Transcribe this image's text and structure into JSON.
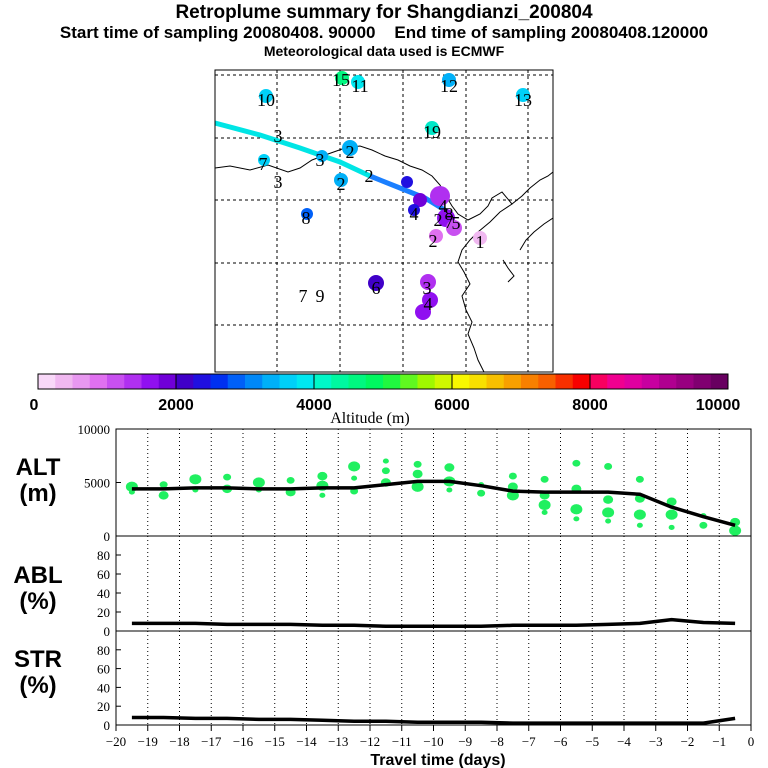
{
  "header": {
    "title": "Retroplume summary for Shangdianzi_200804",
    "start_label": "Start time of sampling 20080408. 90000",
    "end_label": "End time of sampling 20080408.120000",
    "met_label": "Meteorological data used is ECMWF"
  },
  "map": {
    "day_labels": [
      "1",
      "2",
      "2",
      "2",
      "2",
      "2",
      "3",
      "3",
      "3",
      "3",
      "4",
      "4",
      "4",
      "5",
      "6",
      "7",
      "7",
      "7",
      "8",
      "8",
      "9",
      "10",
      "11",
      "12",
      "13",
      "15",
      "19"
    ],
    "trajectory_colors": [
      "#00e5e5",
      "#1a7fff"
    ]
  },
  "colorbar": {
    "colors": [
      "#f8d8f8",
      "#f0b8f0",
      "#e898f0",
      "#e070f0",
      "#c850f0",
      "#b030f0",
      "#9010f0",
      "#7000d8",
      "#4000c8",
      "#2010e0",
      "#0030f0",
      "#0060f8",
      "#0088f8",
      "#00b0f8",
      "#00d0f8",
      "#00e8f0",
      "#00f8c8",
      "#00f8a0",
      "#00f880",
      "#00f860",
      "#20f840",
      "#60f820",
      "#a0f800",
      "#d0f800",
      "#f8f800",
      "#f8e000",
      "#f8c000",
      "#f8a000",
      "#f88000",
      "#f86000",
      "#f83000",
      "#f80000",
      "#f80060",
      "#f00090",
      "#e000a0",
      "#c800a0",
      "#b00090",
      "#980080",
      "#800070",
      "#680060"
    ],
    "tick_labels": [
      "0",
      "2000",
      "4000",
      "6000",
      "8000",
      "10000"
    ],
    "axis_label": "Altitude (m)"
  },
  "panels": {
    "alt_label": "ALT\n(m)",
    "abl_label": "ABL\n(%)",
    "str_label": "STR\n(%)",
    "alt_ticks": [
      "10000",
      "5000",
      "0"
    ],
    "pct_ticks": [
      "80",
      "60",
      "40",
      "20",
      "0"
    ],
    "x_label": "Travel time (days)",
    "x_ticks": [
      "−20",
      "−19",
      "−18",
      "−17",
      "−16",
      "−15",
      "−14",
      "−13",
      "−12",
      "−11",
      "−10",
      "−9",
      "−8",
      "−7",
      "−6",
      "−5",
      "−4",
      "−3",
      "−2",
      "−1",
      "0"
    ]
  },
  "chart_data": [
    {
      "type": "line",
      "title": "ALT",
      "xlabel": "Travel time (days)",
      "ylabel": "ALT (m)",
      "xlim": [
        -20,
        0
      ],
      "ylim": [
        0,
        10000
      ],
      "x": [
        -19.5,
        -18.5,
        -17.5,
        -16.5,
        -15.5,
        -14.5,
        -13.5,
        -12.5,
        -11.5,
        -10.5,
        -9.5,
        -8.5,
        -7.5,
        -6.5,
        -5.5,
        -4.5,
        -3.5,
        -2.5,
        -1.5,
        -0.5
      ],
      "series": [
        {
          "name": "median altitude",
          "values": [
            4400,
            4400,
            4500,
            4500,
            4400,
            4400,
            4500,
            4500,
            4800,
            5100,
            5100,
            4700,
            4200,
            4100,
            4100,
            4100,
            3900,
            2700,
            1800,
            1000
          ]
        }
      ],
      "scatter_x": [
        -19.5,
        -19.5,
        -18.5,
        -18.5,
        -17.5,
        -17.5,
        -16.5,
        -16.5,
        -15.5,
        -15.5,
        -14.5,
        -14.5,
        -13.5,
        -13.5,
        -13.5,
        -12.5,
        -12.5,
        -12.5,
        -11.5,
        -11.5,
        -11.5,
        -10.5,
        -10.5,
        -10.5,
        -9.5,
        -9.5,
        -9.5,
        -8.5,
        -8.5,
        -7.5,
        -7.5,
        -7.5,
        -6.5,
        -6.5,
        -6.5,
        -6.5,
        -5.5,
        -5.5,
        -5.5,
        -5.5,
        -4.5,
        -4.5,
        -4.5,
        -4.5,
        -3.5,
        -3.5,
        -3.5,
        -3.5,
        -2.5,
        -2.5,
        -2.5,
        -1.5,
        -1.5,
        -0.5,
        -0.5
      ],
      "scatter_y": [
        4100,
        4600,
        3800,
        4800,
        4300,
        5300,
        4400,
        5500,
        4300,
        5000,
        4100,
        5200,
        3800,
        4700,
        5600,
        4200,
        5400,
        6500,
        5000,
        6100,
        7000,
        4600,
        5800,
        6700,
        4300,
        5100,
        6400,
        4000,
        4800,
        3800,
        4600,
        5600,
        2200,
        2900,
        3800,
        5300,
        1600,
        2500,
        4400,
        6800,
        1400,
        2200,
        3400,
        6500,
        1000,
        2000,
        3500,
        5300,
        800,
        2000,
        3200,
        1000,
        1900,
        500,
        1300
      ],
      "scatter_label": "plume altitude distribution"
    },
    {
      "type": "line",
      "title": "ABL",
      "ylabel": "ABL (%)",
      "xlim": [
        -20,
        0
      ],
      "ylim": [
        0,
        100
      ],
      "x": [
        -19.5,
        -18.5,
        -17.5,
        -16.5,
        -15.5,
        -14.5,
        -13.5,
        -12.5,
        -11.5,
        -10.5,
        -9.5,
        -8.5,
        -7.5,
        -6.5,
        -5.5,
        -4.5,
        -3.5,
        -2.5,
        -1.5,
        -0.5
      ],
      "series": [
        {
          "name": "ABL fraction",
          "values": [
            8,
            8,
            8,
            7,
            7,
            7,
            6,
            6,
            5,
            5,
            5,
            5,
            6,
            6,
            6,
            7,
            8,
            12,
            9,
            8
          ]
        }
      ]
    },
    {
      "type": "line",
      "title": "STR",
      "ylabel": "STR (%)",
      "xlim": [
        -20,
        0
      ],
      "ylim": [
        0,
        100
      ],
      "x": [
        -19.5,
        -18.5,
        -17.5,
        -16.5,
        -15.5,
        -14.5,
        -13.5,
        -12.5,
        -11.5,
        -10.5,
        -9.5,
        -8.5,
        -7.5,
        -6.5,
        -5.5,
        -4.5,
        -3.5,
        -2.5,
        -1.5,
        -0.5
      ],
      "series": [
        {
          "name": "STR fraction",
          "values": [
            8,
            8,
            7,
            7,
            6,
            6,
            5,
            4,
            4,
            3,
            3,
            3,
            2,
            2,
            2,
            2,
            2,
            2,
            2,
            7
          ]
        }
      ]
    }
  ]
}
